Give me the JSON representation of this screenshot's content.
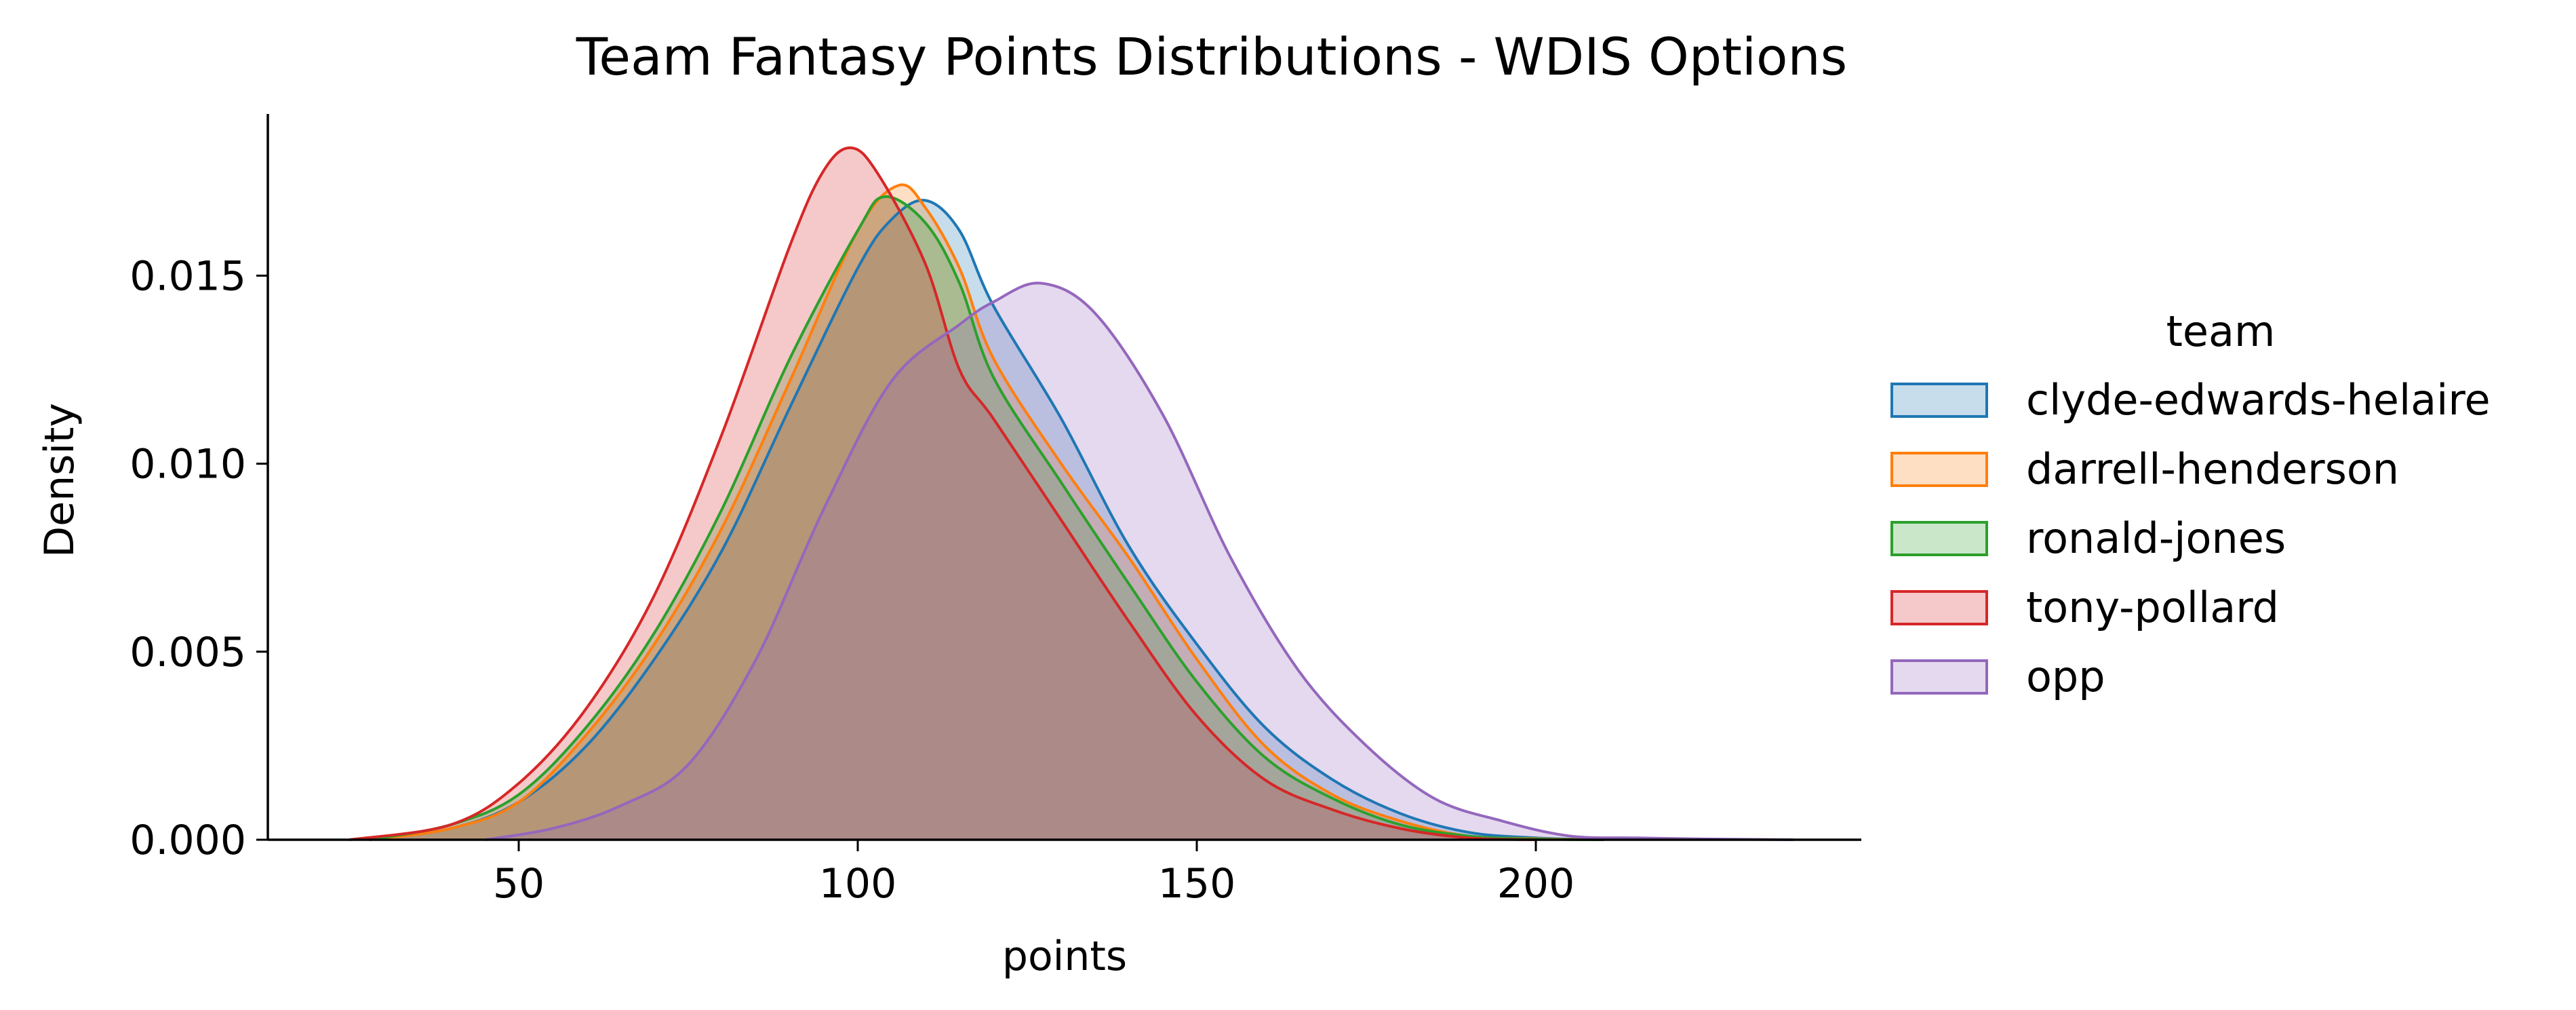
{
  "chart_data": {
    "type": "area",
    "kind": "kde-density",
    "title": "Team Fantasy Points Distributions - WDIS Options",
    "xlabel": "points",
    "ylabel": "Density",
    "xlim": [
      13,
      248
    ],
    "ylim": [
      0,
      0.0193
    ],
    "x_ticks": [
      50,
      100,
      150,
      200
    ],
    "x_tick_labels": [
      "50",
      "100",
      "150",
      "200"
    ],
    "y_ticks": [
      0.0,
      0.005,
      0.01,
      0.015
    ],
    "y_tick_labels": [
      "0.000",
      "0.005",
      "0.010",
      "0.015"
    ],
    "grid": false,
    "legend": {
      "title": "team",
      "placement": "right"
    },
    "series": [
      {
        "name": "clyde-edwards-helaire",
        "color": "#1f77b4",
        "points": [
          [
            28,
            0
          ],
          [
            40,
            0.0003
          ],
          [
            50,
            0.001
          ],
          [
            60,
            0.0025
          ],
          [
            70,
            0.0048
          ],
          [
            80,
            0.0077
          ],
          [
            90,
            0.0115
          ],
          [
            100,
            0.0152
          ],
          [
            105,
            0.0165
          ],
          [
            110,
            0.017
          ],
          [
            115,
            0.0162
          ],
          [
            120,
            0.0142
          ],
          [
            130,
            0.0112
          ],
          [
            140,
            0.0078
          ],
          [
            150,
            0.0052
          ],
          [
            160,
            0.003
          ],
          [
            170,
            0.0016
          ],
          [
            180,
            0.0007
          ],
          [
            190,
            0.0002
          ],
          [
            200,
            5e-05
          ],
          [
            210,
            0
          ]
        ]
      },
      {
        "name": "darrell-henderson",
        "color": "#ff7f0e",
        "points": [
          [
            28,
            0
          ],
          [
            40,
            0.0003
          ],
          [
            50,
            0.001
          ],
          [
            60,
            0.0028
          ],
          [
            70,
            0.0052
          ],
          [
            80,
            0.0083
          ],
          [
            90,
            0.0122
          ],
          [
            100,
            0.0162
          ],
          [
            106,
            0.0174
          ],
          [
            110,
            0.0168
          ],
          [
            115,
            0.0152
          ],
          [
            120,
            0.0128
          ],
          [
            130,
            0.01
          ],
          [
            140,
            0.0075
          ],
          [
            150,
            0.0048
          ],
          [
            160,
            0.0025
          ],
          [
            170,
            0.0012
          ],
          [
            180,
            0.0005
          ],
          [
            190,
            0.0001
          ],
          [
            200,
            3e-05
          ],
          [
            210,
            0
          ]
        ]
      },
      {
        "name": "ronald-jones",
        "color": "#2ca02c",
        "points": [
          [
            28,
            0
          ],
          [
            40,
            0.0004
          ],
          [
            50,
            0.0012
          ],
          [
            60,
            0.003
          ],
          [
            70,
            0.0055
          ],
          [
            80,
            0.0088
          ],
          [
            90,
            0.0128
          ],
          [
            100,
            0.0162
          ],
          [
            104,
            0.0171
          ],
          [
            110,
            0.0164
          ],
          [
            115,
            0.0148
          ],
          [
            120,
            0.0123
          ],
          [
            130,
            0.0095
          ],
          [
            140,
            0.0068
          ],
          [
            150,
            0.0042
          ],
          [
            160,
            0.0022
          ],
          [
            170,
            0.0011
          ],
          [
            180,
            0.0004
          ],
          [
            190,
            0.0001
          ],
          [
            200,
            2e-05
          ],
          [
            210,
            0
          ]
        ]
      },
      {
        "name": "tony-pollard",
        "color": "#d62728",
        "points": [
          [
            25,
            0
          ],
          [
            40,
            0.0004
          ],
          [
            50,
            0.0015
          ],
          [
            60,
            0.0035
          ],
          [
            70,
            0.0065
          ],
          [
            80,
            0.0108
          ],
          [
            90,
            0.0158
          ],
          [
            95,
            0.0178
          ],
          [
            99,
            0.0184
          ],
          [
            103,
            0.0177
          ],
          [
            110,
            0.0153
          ],
          [
            115,
            0.0125
          ],
          [
            120,
            0.0112
          ],
          [
            130,
            0.0085
          ],
          [
            140,
            0.0058
          ],
          [
            150,
            0.0033
          ],
          [
            160,
            0.0016
          ],
          [
            170,
            0.0008
          ],
          [
            180,
            0.0003
          ],
          [
            190,
            5e-05
          ],
          [
            200,
            0
          ]
        ]
      },
      {
        "name": "opp",
        "color": "#9467bd",
        "points": [
          [
            45,
            0
          ],
          [
            55,
            0.0003
          ],
          [
            65,
            0.0009
          ],
          [
            75,
            0.002
          ],
          [
            85,
            0.0048
          ],
          [
            95,
            0.0088
          ],
          [
            105,
            0.0122
          ],
          [
            115,
            0.0137
          ],
          [
            120,
            0.0143
          ],
          [
            127,
            0.0148
          ],
          [
            135,
            0.014
          ],
          [
            145,
            0.0113
          ],
          [
            155,
            0.0075
          ],
          [
            165,
            0.0045
          ],
          [
            175,
            0.0025
          ],
          [
            185,
            0.0011
          ],
          [
            195,
            0.0005
          ],
          [
            205,
            0.0001
          ],
          [
            215,
            5e-05
          ],
          [
            225,
            2e-05
          ],
          [
            238,
            0
          ]
        ]
      }
    ]
  }
}
